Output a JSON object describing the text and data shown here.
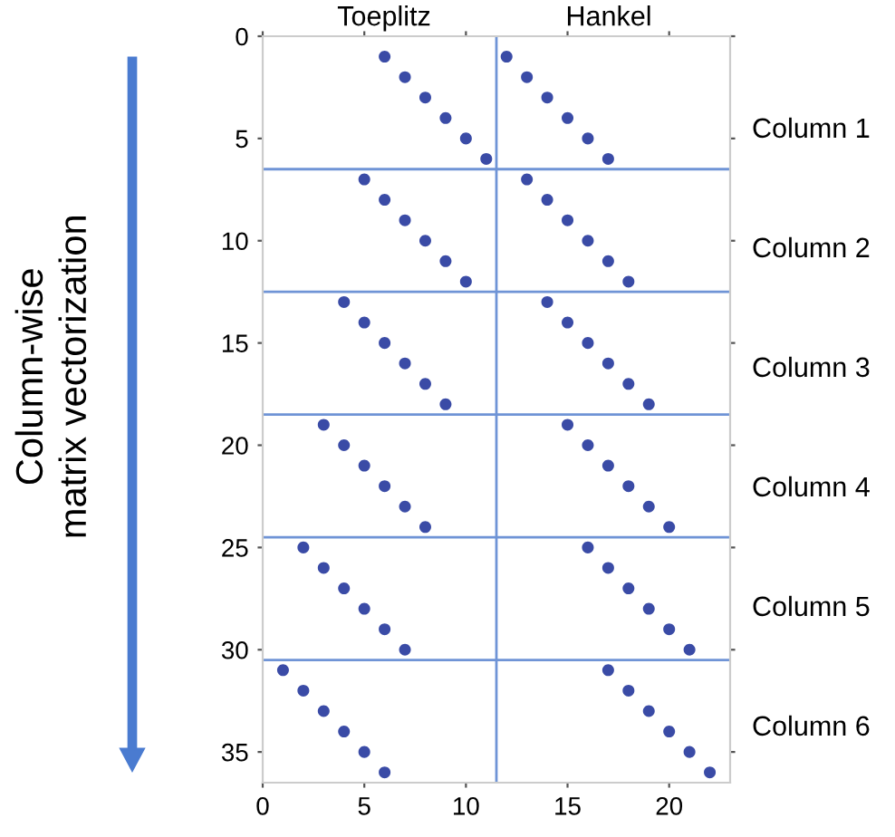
{
  "chart_data": {
    "type": "scatter",
    "x": [
      6,
      7,
      8,
      9,
      10,
      11,
      12,
      13,
      14,
      15,
      16,
      17,
      5,
      6,
      7,
      8,
      9,
      10,
      13,
      14,
      15,
      16,
      17,
      18,
      4,
      5,
      6,
      7,
      8,
      9,
      14,
      15,
      16,
      17,
      18,
      19,
      3,
      4,
      5,
      6,
      7,
      8,
      15,
      16,
      17,
      18,
      19,
      20,
      2,
      3,
      4,
      5,
      6,
      7,
      16,
      17,
      18,
      19,
      20,
      21,
      1,
      2,
      3,
      4,
      5,
      6,
      17,
      18,
      19,
      20,
      21,
      22
    ],
    "series": [
      {
        "color": "#3a4ba6",
        "values": [
          1,
          2,
          3,
          4,
          5,
          6,
          1,
          2,
          3,
          4,
          5,
          6,
          7,
          8,
          9,
          10,
          11,
          12,
          7,
          8,
          9,
          10,
          11,
          12,
          13,
          14,
          15,
          16,
          17,
          18,
          13,
          14,
          15,
          16,
          17,
          18,
          19,
          20,
          21,
          22,
          23,
          24,
          19,
          20,
          21,
          22,
          23,
          24,
          25,
          26,
          27,
          28,
          29,
          30,
          25,
          26,
          27,
          28,
          29,
          30,
          31,
          32,
          33,
          34,
          35,
          36,
          31,
          32,
          33,
          34,
          35,
          36
        ]
      }
    ],
    "marker": "circle",
    "xlim": [
      0,
      23
    ],
    "ylim": [
      36.5,
      0
    ],
    "xticks": [
      0,
      5,
      10,
      15,
      20
    ],
    "yticks": [
      0,
      5,
      10,
      15,
      20,
      25,
      30,
      35
    ],
    "ref_lines": [
      {
        "axis": "x",
        "value": 11.5,
        "color": "#6f94d6"
      },
      {
        "axis": "y",
        "value": 6.5,
        "color": "#6f94d6"
      },
      {
        "axis": "y",
        "value": 12.5,
        "color": "#6f94d6"
      },
      {
        "axis": "y",
        "value": 18.5,
        "color": "#6f94d6"
      },
      {
        "axis": "y",
        "value": 24.5,
        "color": "#6f94d6"
      },
      {
        "axis": "y",
        "value": 30.5,
        "color": "#6f94d6"
      }
    ],
    "annotations": [
      "Toeplitz",
      "Hankel",
      "Column 1",
      "Column 2",
      "Column 3",
      "Column 4",
      "Column 5",
      "Column 6",
      "Column-wise\nmatrix vectorization"
    ],
    "grid": false
  }
}
